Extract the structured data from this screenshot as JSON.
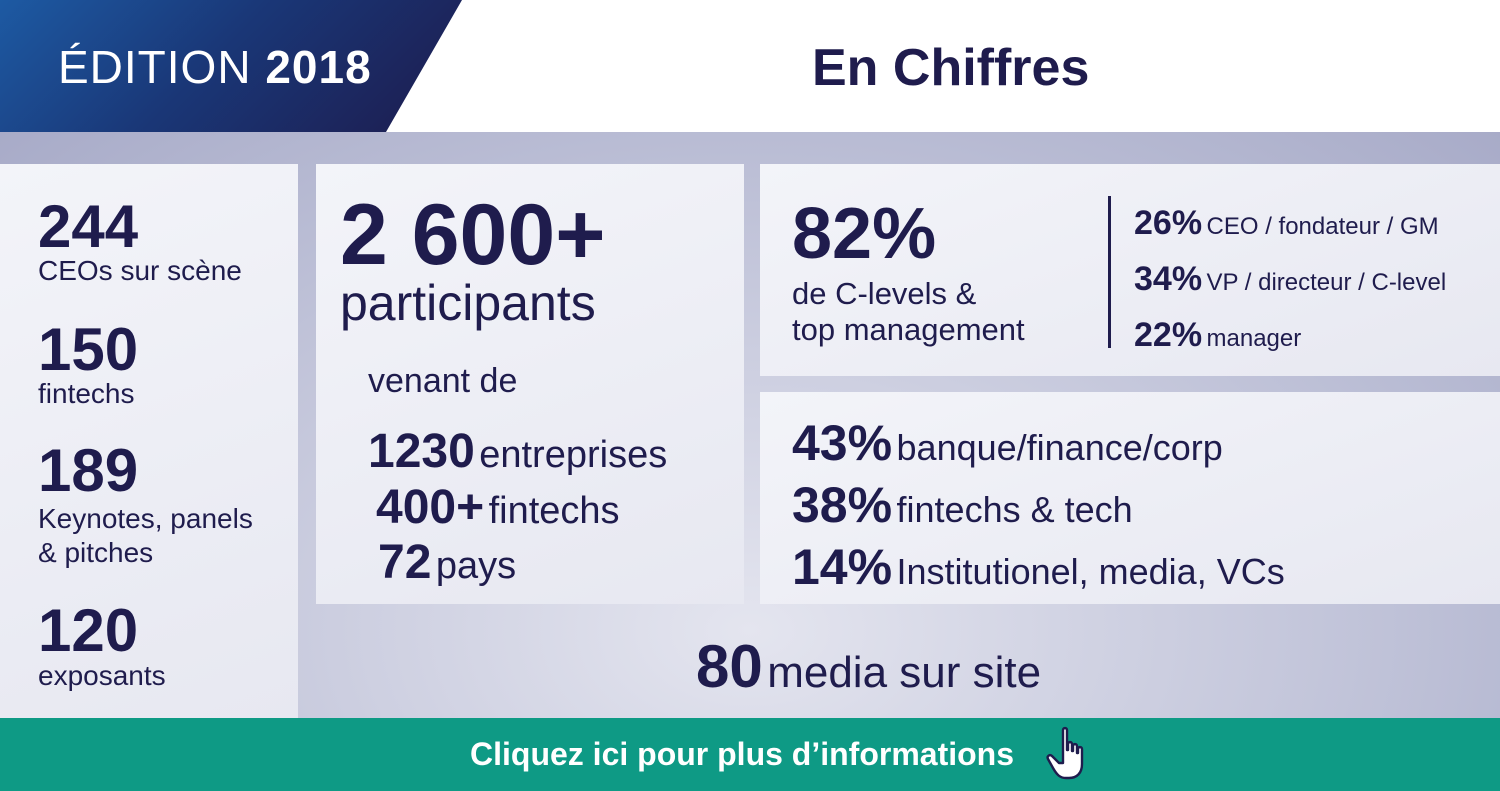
{
  "header": {
    "edition_label": "ÉDITION",
    "edition_year": "2018",
    "title": "En Chiffres"
  },
  "left_stats": [
    {
      "value": "244",
      "label": "CEOs sur scène"
    },
    {
      "value": "150",
      "label": "fintechs"
    },
    {
      "value": "189",
      "label_line1": "Keynotes, panels",
      "label_line2": "& pitches"
    },
    {
      "value": "120",
      "label": "exposants"
    }
  ],
  "participants": {
    "value": "2 600+",
    "label": "participants",
    "from_label": "venant de",
    "breakdown": [
      {
        "value": "1230",
        "label": "entreprises"
      },
      {
        "value": "400+",
        "label": "fintechs"
      },
      {
        "value": "72",
        "label": "pays"
      }
    ]
  },
  "management": {
    "value": "82%",
    "label_line1": "de C-levels &",
    "label_line2": "top management",
    "breakdown": [
      {
        "value": "26%",
        "label": "CEO / fondateur / GM"
      },
      {
        "value": "34%",
        "label": "VP / directeur / C-level"
      },
      {
        "value": "22%",
        "label": "manager"
      }
    ]
  },
  "sectors": [
    {
      "value": "43%",
      "label": "banque/finance/corp"
    },
    {
      "value": "38%",
      "label": "fintechs & tech"
    },
    {
      "value": "14%",
      "label": "Institutionel, media, VCs"
    }
  ],
  "media": {
    "value": "80",
    "label": "media sur site"
  },
  "cta": {
    "label": "Cliquez ici pour plus d’informations",
    "icon": "hand-pointer-icon"
  },
  "colors": {
    "navy": "#1f1c4d",
    "blue": "#1d5aa3",
    "cta_green": "#0e9a85",
    "card": "#eceef5"
  }
}
